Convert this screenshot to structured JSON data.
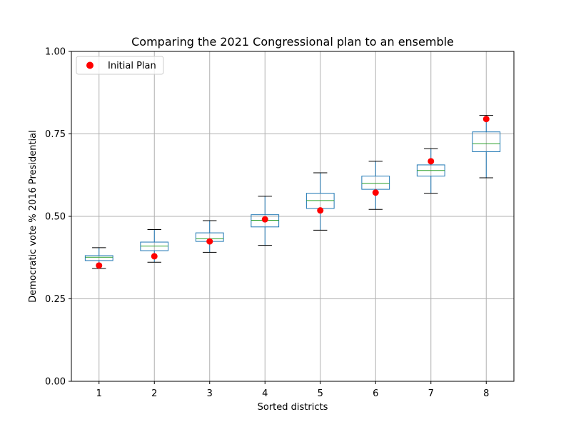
{
  "chart_data": {
    "type": "box",
    "title": "Comparing the 2021 Congressional plan to an ensemble",
    "xlabel": "Sorted districts",
    "ylabel": "Democratic vote % 2016 Presidential",
    "categories": [
      "1",
      "2",
      "3",
      "4",
      "5",
      "6",
      "7",
      "8"
    ],
    "ylim": [
      0,
      1
    ],
    "yticks": [
      0,
      0.25,
      0.5,
      0.75,
      1
    ],
    "ytick_labels": [
      "0.00",
      "0.25",
      "0.50",
      "0.75",
      "1.00"
    ],
    "grid": true,
    "legend_position": "top-left",
    "boxes": [
      {
        "whisker_low": 0.342,
        "q1": 0.366,
        "median": 0.376,
        "q3": 0.381,
        "whisker_high": 0.405
      },
      {
        "whisker_low": 0.361,
        "q1": 0.396,
        "median": 0.41,
        "q3": 0.422,
        "whisker_high": 0.46
      },
      {
        "whisker_low": 0.391,
        "q1": 0.424,
        "median": 0.432,
        "q3": 0.45,
        "whisker_high": 0.487
      },
      {
        "whisker_low": 0.412,
        "q1": 0.468,
        "median": 0.488,
        "q3": 0.505,
        "whisker_high": 0.561
      },
      {
        "whisker_low": 0.458,
        "q1": 0.524,
        "median": 0.548,
        "q3": 0.57,
        "whisker_high": 0.632
      },
      {
        "whisker_low": 0.521,
        "q1": 0.582,
        "median": 0.6,
        "q3": 0.622,
        "whisker_high": 0.667
      },
      {
        "whisker_low": 0.57,
        "q1": 0.622,
        "median": 0.639,
        "q3": 0.656,
        "whisker_high": 0.705
      },
      {
        "whisker_low": 0.617,
        "q1": 0.696,
        "median": 0.72,
        "q3": 0.756,
        "whisker_high": 0.806
      }
    ],
    "series": [
      {
        "name": "Initial Plan",
        "values": [
          0.351,
          0.379,
          0.424,
          0.491,
          0.518,
          0.572,
          0.667,
          0.795
        ]
      }
    ],
    "colors": {
      "box": "#1f77b4",
      "median": "#2ca02c",
      "whisker_cap": "#000000",
      "marker": "#ff0000",
      "grid": "#b0b0b0",
      "axes": "#000000"
    }
  }
}
